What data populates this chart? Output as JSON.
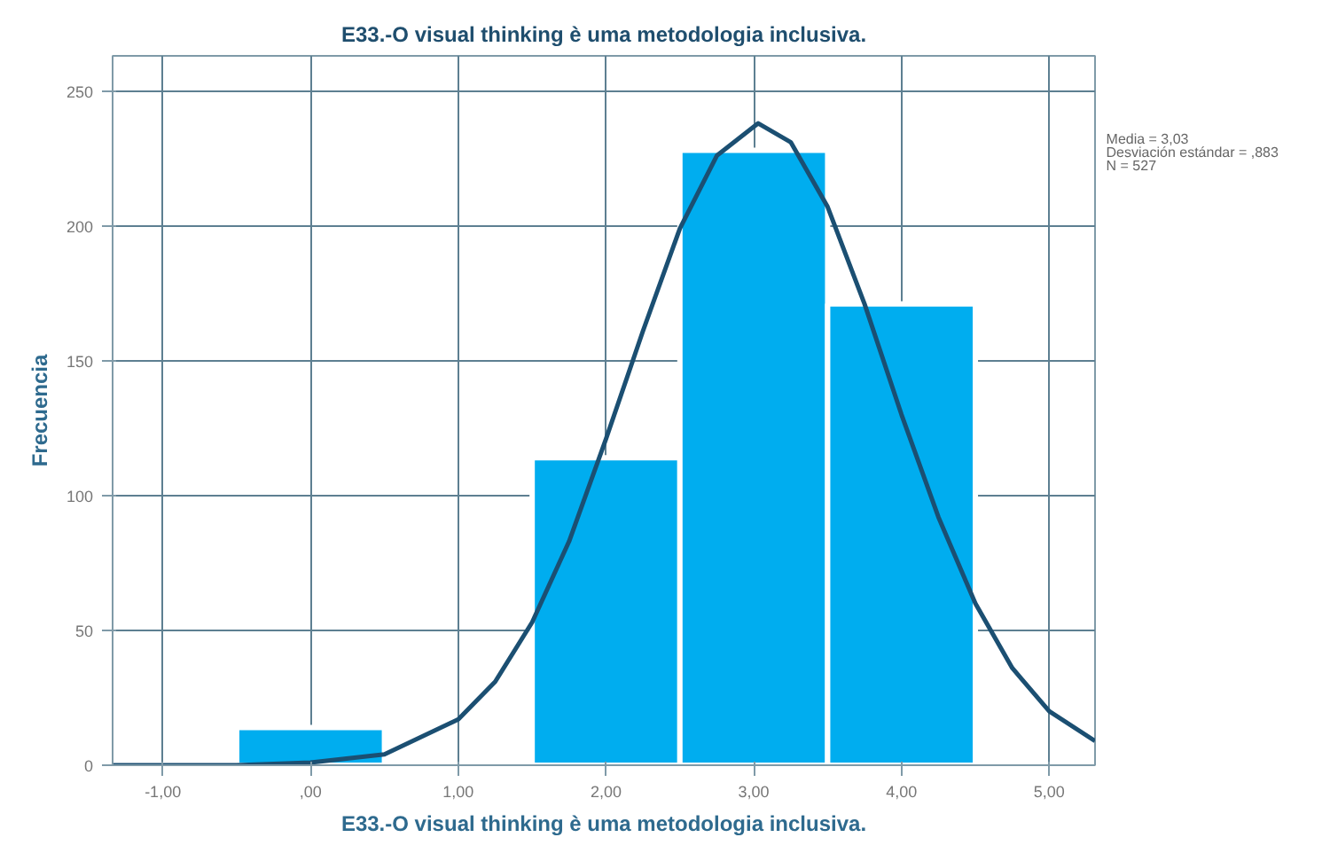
{
  "chart_data": {
    "type": "histogram",
    "title": "E33.-O visual thinking è uma metodologia inclusiva.",
    "xlabel": "E33.-O visual thinking è uma metodologia inclusiva.",
    "ylabel": "Frecuencia",
    "bins": [
      -0.5,
      0.5,
      1.5,
      2.5,
      3.5,
      4.5
    ],
    "values": [
      14,
      0,
      114,
      228,
      171
    ],
    "color": "#00adef",
    "series": [
      {
        "type": "line",
        "color": "#1b4f72",
        "x": [
          -1.34,
          -1,
          -0.5,
          0,
          0.5,
          1,
          1.25,
          1.5,
          1.75,
          2,
          2.25,
          2.5,
          2.75,
          3.03,
          3.25,
          3.5,
          3.75,
          4,
          4.25,
          4.5,
          4.75,
          5,
          5.31
        ],
        "values": [
          0,
          0,
          0,
          1,
          4,
          17,
          31,
          53,
          83,
          121,
          161,
          199,
          226,
          238,
          231,
          207,
          171,
          130,
          92,
          60,
          36,
          20,
          9
        ]
      }
    ],
    "xlim": [
      -1.34,
      5.31
    ],
    "ylim": [
      0,
      263
    ],
    "xticks": [
      {
        "value": -1,
        "label": "-1,00"
      },
      {
        "value": 0,
        "label": ",00"
      },
      {
        "value": 1,
        "label": "1,00"
      },
      {
        "value": 2,
        "label": "2,00"
      },
      {
        "value": 3,
        "label": "3,00"
      },
      {
        "value": 4,
        "label": "4,00"
      },
      {
        "value": 5,
        "label": "5,00"
      }
    ],
    "yticks": [
      0,
      50,
      100,
      150,
      200,
      250
    ],
    "grid": true,
    "annotations": [
      "Media = 3,03",
      "Desviación estándar = ,883",
      "N = 527"
    ]
  }
}
